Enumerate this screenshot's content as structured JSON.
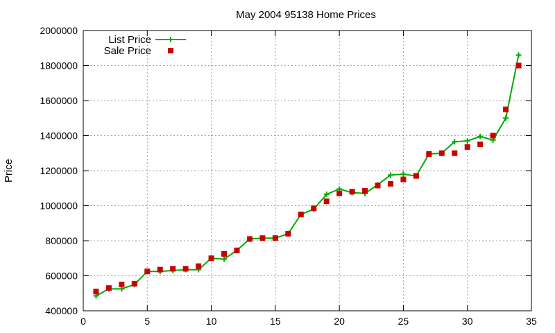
{
  "chart_data": {
    "type": "line",
    "title": "May 2004 95138 Home Prices",
    "xlabel": "",
    "ylabel": "Price",
    "xlim": [
      0,
      35
    ],
    "ylim": [
      400000,
      2000000
    ],
    "x_ticks": [
      0,
      5,
      10,
      15,
      20,
      25,
      30,
      35
    ],
    "y_ticks": [
      400000,
      600000,
      800000,
      1000000,
      1200000,
      1400000,
      1600000,
      1800000,
      2000000
    ],
    "grid": true,
    "legend_position": "top-left",
    "series": [
      {
        "name": "List Price",
        "style": "line-plus",
        "color": "#00aa00",
        "x": [
          1,
          2,
          3,
          4,
          5,
          6,
          7,
          8,
          9,
          10,
          11,
          12,
          13,
          14,
          15,
          16,
          17,
          18,
          19,
          20,
          21,
          22,
          23,
          24,
          25,
          26,
          27,
          28,
          29,
          30,
          31,
          32,
          33,
          34
        ],
        "y": [
          485000,
          525000,
          525000,
          550000,
          625000,
          625000,
          630000,
          635000,
          635000,
          700000,
          695000,
          745000,
          810000,
          815000,
          815000,
          840000,
          950000,
          980000,
          1065000,
          1095000,
          1075000,
          1070000,
          1120000,
          1175000,
          1180000,
          1170000,
          1295000,
          1300000,
          1365000,
          1370000,
          1395000,
          1375000,
          1500000,
          1860000
        ]
      },
      {
        "name": "Sale Price",
        "style": "square-marker",
        "color": "#cc0000",
        "x": [
          1,
          2,
          3,
          4,
          5,
          6,
          7,
          8,
          9,
          10,
          11,
          12,
          13,
          14,
          15,
          16,
          17,
          18,
          19,
          20,
          21,
          22,
          23,
          24,
          25,
          26,
          27,
          28,
          29,
          30,
          31,
          32,
          33,
          34
        ],
        "y": [
          510000,
          530000,
          550000,
          555000,
          625000,
          635000,
          640000,
          640000,
          655000,
          700000,
          725000,
          745000,
          810000,
          815000,
          815000,
          840000,
          950000,
          985000,
          1025000,
          1070000,
          1080000,
          1085000,
          1115000,
          1125000,
          1150000,
          1170000,
          1295000,
          1300000,
          1300000,
          1335000,
          1350000,
          1400000,
          1550000,
          1800000
        ]
      }
    ]
  }
}
